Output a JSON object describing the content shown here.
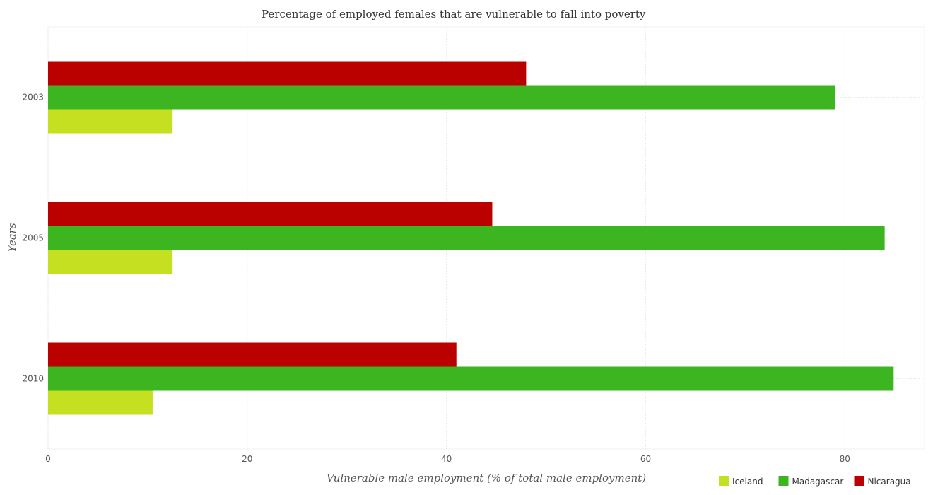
{
  "chart_data": {
    "type": "bar",
    "orientation": "horizontal",
    "title": "Percentage of employed females that are vulnerable to fall into poverty",
    "xlabel": "Vulnerable male employment (% of total male employment)",
    "ylabel": "Years",
    "categories": [
      "2003",
      "2005",
      "2010"
    ],
    "series": [
      {
        "name": "Iceland",
        "color": "#c5e021",
        "values": [
          12.5,
          12.5,
          10.5
        ]
      },
      {
        "name": "Madagascar",
        "color": "#3cb521",
        "values": [
          79.0,
          84.0,
          84.9
        ]
      },
      {
        "name": "Nicaragua",
        "color": "#bb0000",
        "values": [
          48.0,
          44.6,
          41.0
        ]
      }
    ],
    "xlim": [
      0,
      88
    ],
    "xticks": [
      0,
      20,
      40,
      60,
      80
    ],
    "grid": true,
    "legend_position": "bottom-right"
  }
}
